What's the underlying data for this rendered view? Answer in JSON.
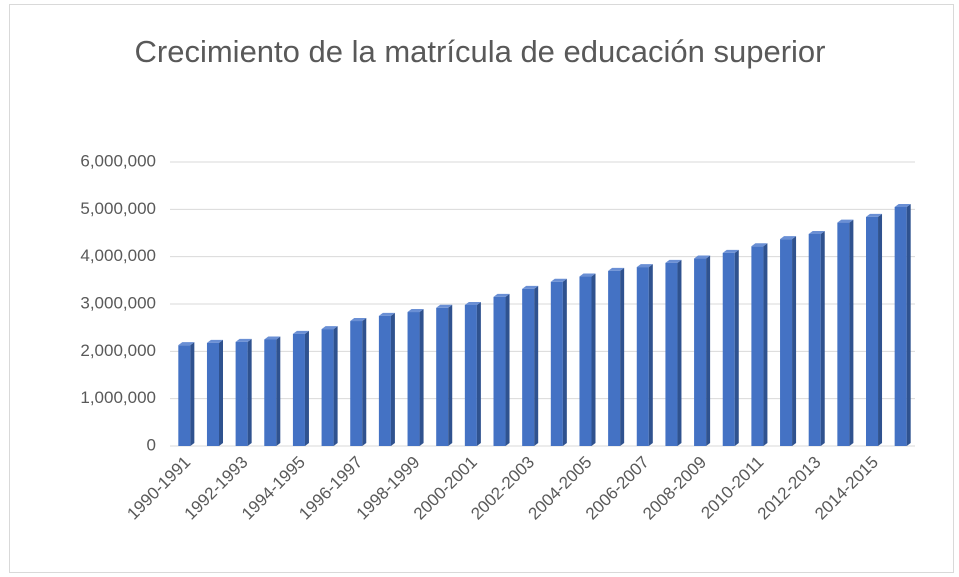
{
  "chart_data": {
    "type": "bar",
    "title": "Crecimiento de la matrícula de educación superior",
    "categories": [
      "1990-1991",
      null,
      "1992-1993",
      null,
      "1994-1995",
      null,
      "1996-1997",
      null,
      "1998-1999",
      null,
      "2000-2001",
      null,
      "2002-2003",
      null,
      "2004-2005",
      null,
      "2006-2007",
      null,
      "2008-2009",
      null,
      "2010-2011",
      null,
      "2012-2013",
      null,
      "2014-2015",
      null
    ],
    "values": [
      2130000,
      2180000,
      2200000,
      2250000,
      2370000,
      2470000,
      2640000,
      2750000,
      2830000,
      2920000,
      2980000,
      3150000,
      3320000,
      3470000,
      3580000,
      3700000,
      3780000,
      3870000,
      3960000,
      4080000,
      4220000,
      4370000,
      4480000,
      4720000,
      4840000,
      5050000
    ],
    "color": "#4472c4",
    "ylim": [
      0,
      6000000
    ],
    "yticks": [
      0,
      {
        "value": 1000000,
        "label": "1,000,000"
      },
      {
        "value": 2000000,
        "label": "2,000,000"
      },
      {
        "value": 3000000,
        "label": "3,000,000"
      },
      {
        "value": 4000000,
        "label": "4,000,000"
      },
      {
        "value": 5000000,
        "label": "5,000,000"
      },
      {
        "value": 6000000,
        "label": "6,000,000"
      }
    ],
    "grid": true
  }
}
